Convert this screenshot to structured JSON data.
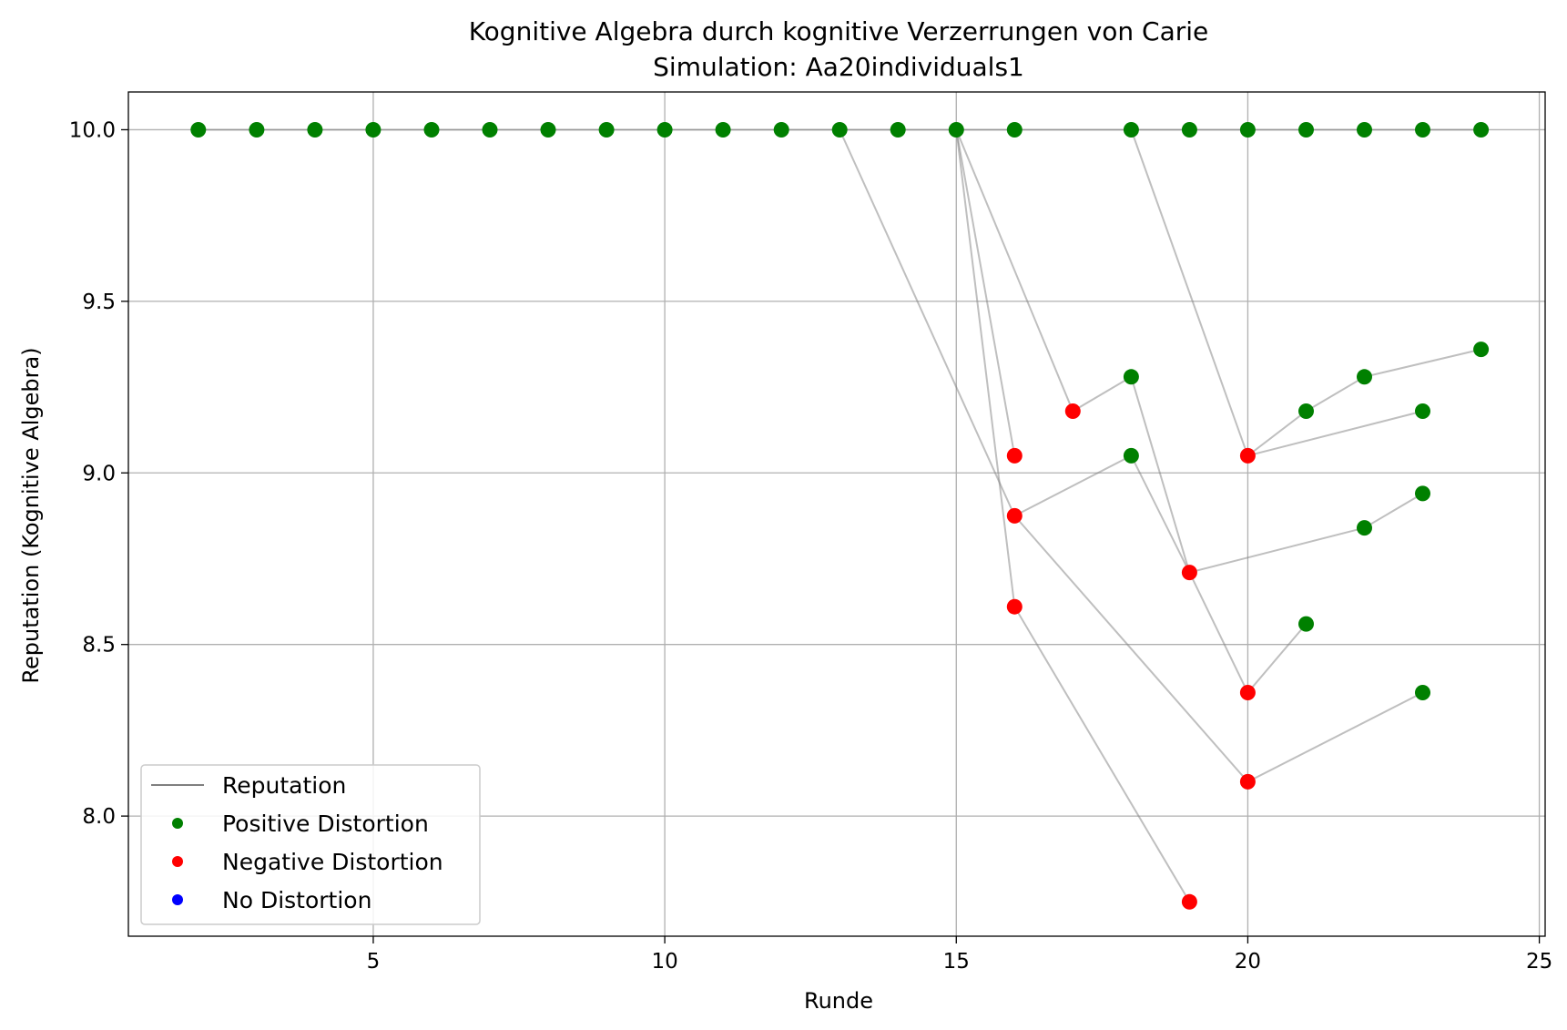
{
  "chart_data": {
    "type": "scatter",
    "title": "Kognitive Algebra durch kognitive Verzerrungen von Carie",
    "subtitle": "Simulation: Aa20individuals1",
    "xlabel": "Runde",
    "ylabel": "Reputation (Kognitive Algebra)",
    "xlim": [
      0.8,
      25.1
    ],
    "ylim": [
      7.65,
      10.11
    ],
    "xticks": [
      5,
      10,
      15,
      20,
      25
    ],
    "yticks": [
      8.0,
      8.5,
      9.0,
      9.5,
      10.0
    ],
    "xtick_labels": [
      "5",
      "10",
      "15",
      "20",
      "25"
    ],
    "ytick_labels": [
      "8.0",
      "8.5",
      "9.0",
      "9.5",
      "10.0"
    ],
    "grid": true,
    "legend_position": "lower-left",
    "legend": [
      {
        "label": "Reputation",
        "kind": "line",
        "color": "#808080"
      },
      {
        "label": "Positive Distortion",
        "kind": "dot",
        "color": "#008000"
      },
      {
        "label": "Negative Distortion",
        "kind": "dot",
        "color": "#ff0000"
      },
      {
        "label": "No Distortion",
        "kind": "dot",
        "color": "#0000ff"
      }
    ],
    "colors": {
      "positive": "#008000",
      "negative": "#ff0000",
      "none": "#0000ff",
      "line": "#808080"
    },
    "reputation_lines": [
      [
        [
          2,
          10.0
        ],
        [
          3,
          10.0
        ],
        [
          4,
          10.0
        ],
        [
          5,
          10.0
        ],
        [
          6,
          10.0
        ],
        [
          7,
          10.0
        ],
        [
          8,
          10.0
        ],
        [
          9,
          10.0
        ],
        [
          10,
          10.0
        ],
        [
          11,
          10.0
        ],
        [
          12,
          10.0
        ],
        [
          13,
          10.0
        ],
        [
          14,
          10.0
        ],
        [
          15,
          10.0
        ],
        [
          16,
          10.0
        ],
        [
          17,
          10.0
        ],
        [
          18,
          10.0
        ],
        [
          19,
          10.0
        ],
        [
          20,
          10.0
        ],
        [
          21,
          10.0
        ],
        [
          22,
          10.0
        ],
        [
          23,
          10.0
        ],
        [
          24,
          10.0
        ]
      ],
      [
        [
          13,
          10.0
        ],
        [
          16,
          8.875
        ],
        [
          18,
          9.05
        ]
      ],
      [
        [
          16,
          8.875
        ],
        [
          20,
          8.1
        ],
        [
          23,
          8.36
        ]
      ],
      [
        [
          15,
          10.0
        ],
        [
          17,
          9.18
        ],
        [
          18,
          9.28
        ],
        [
          19,
          8.71
        ],
        [
          20,
          8.36
        ],
        [
          21,
          8.56
        ]
      ],
      [
        [
          18,
          9.05
        ],
        [
          19,
          8.71
        ],
        [
          22,
          8.84
        ],
        [
          23,
          8.94
        ]
      ],
      [
        [
          15,
          10.0
        ],
        [
          16,
          9.05
        ]
      ],
      [
        [
          15,
          10.0
        ],
        [
          16,
          8.61
        ],
        [
          19,
          7.75
        ]
      ],
      [
        [
          18,
          10.0
        ],
        [
          20,
          9.05
        ],
        [
          21,
          9.18
        ],
        [
          22,
          9.28
        ],
        [
          24,
          9.36
        ]
      ],
      [
        [
          20,
          9.05
        ],
        [
          23,
          9.18
        ]
      ]
    ],
    "positive_points": [
      [
        2,
        10.0
      ],
      [
        3,
        10.0
      ],
      [
        4,
        10.0
      ],
      [
        5,
        10.0
      ],
      [
        6,
        10.0
      ],
      [
        7,
        10.0
      ],
      [
        8,
        10.0
      ],
      [
        9,
        10.0
      ],
      [
        10,
        10.0
      ],
      [
        11,
        10.0
      ],
      [
        12,
        10.0
      ],
      [
        13,
        10.0
      ],
      [
        14,
        10.0
      ],
      [
        15,
        10.0
      ],
      [
        16,
        10.0
      ],
      [
        18,
        10.0
      ],
      [
        19,
        10.0
      ],
      [
        20,
        10.0
      ],
      [
        21,
        10.0
      ],
      [
        22,
        10.0
      ],
      [
        23,
        10.0
      ],
      [
        24,
        10.0
      ],
      [
        18,
        9.28
      ],
      [
        18,
        9.05
      ],
      [
        21,
        9.18
      ],
      [
        22,
        9.28
      ],
      [
        24,
        9.36
      ],
      [
        23,
        9.18
      ],
      [
        23,
        8.94
      ],
      [
        22,
        8.84
      ],
      [
        21,
        8.56
      ],
      [
        23,
        8.36
      ]
    ],
    "negative_points": [
      [
        17,
        9.18
      ],
      [
        16,
        9.05
      ],
      [
        16,
        8.875
      ],
      [
        16,
        8.61
      ],
      [
        19,
        8.71
      ],
      [
        20,
        9.05
      ],
      [
        20,
        8.36
      ],
      [
        20,
        8.1
      ],
      [
        19,
        7.75
      ]
    ],
    "no_distortion_points": []
  }
}
